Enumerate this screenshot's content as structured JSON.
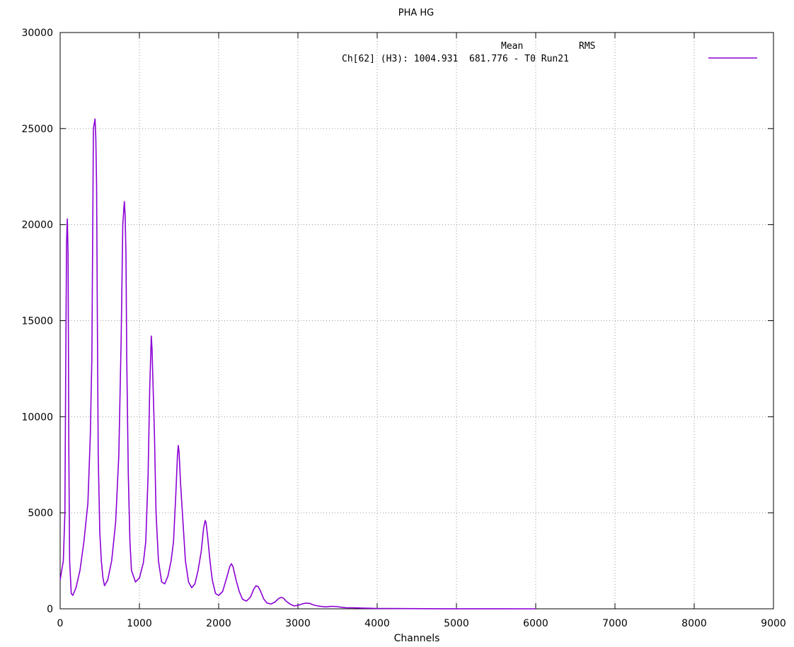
{
  "chart_data": {
    "type": "line",
    "title": "PHA HG",
    "xlabel": "Channels",
    "ylabel": "",
    "xlim": [
      0,
      9000
    ],
    "ylim": [
      0,
      30000
    ],
    "grid": true,
    "legend_placement": "top-right",
    "x_ticks": [
      "0",
      "1000",
      "2000",
      "3000",
      "4000",
      "5000",
      "6000",
      "7000",
      "8000",
      "9000"
    ],
    "y_ticks": [
      "0",
      "5000",
      "10000",
      "15000",
      "20000",
      "25000",
      "30000"
    ],
    "legend": {
      "header_mean": "Mean",
      "header_rms": "RMS",
      "entry": "Ch[62] (H3): 1004.931  681.776 - T0 Run21"
    },
    "series": [
      {
        "name": "Ch[62] (H3): 1004.931  681.776 - T0 Run21",
        "color": "#8b00d4",
        "x": [
          0,
          20,
          40,
          60,
          70,
          80,
          90,
          95,
          100,
          110,
          120,
          140,
          160,
          180,
          200,
          250,
          300,
          350,
          380,
          400,
          420,
          440,
          450,
          460,
          470,
          480,
          500,
          520,
          540,
          560,
          600,
          650,
          700,
          740,
          770,
          790,
          810,
          820,
          830,
          840,
          860,
          880,
          900,
          950,
          1000,
          1050,
          1080,
          1110,
          1130,
          1150,
          1160,
          1170,
          1190,
          1210,
          1240,
          1280,
          1320,
          1360,
          1400,
          1430,
          1460,
          1480,
          1490,
          1500,
          1520,
          1550,
          1580,
          1620,
          1660,
          1700,
          1740,
          1780,
          1810,
          1830,
          1840,
          1860,
          1890,
          1920,
          1960,
          2000,
          2050,
          2100,
          2140,
          2160,
          2180,
          2220,
          2260,
          2300,
          2350,
          2400,
          2440,
          2470,
          2500,
          2530,
          2570,
          2610,
          2660,
          2710,
          2760,
          2790,
          2820,
          2850,
          2900,
          2950,
          3000,
          3050,
          3100,
          3150,
          3200,
          3250,
          3300,
          3350,
          3400,
          3450,
          3500,
          3550,
          3600,
          3700,
          3800,
          3900,
          4000,
          4200,
          4400,
          4600,
          4800,
          5000,
          5500,
          6000
        ],
        "values": [
          1500,
          2000,
          2500,
          5000,
          12000,
          19000,
          20300,
          19500,
          18500,
          8000,
          2500,
          800,
          700,
          900,
          1100,
          2000,
          3500,
          5500,
          9000,
          13000,
          25000,
          25500,
          24500,
          22000,
          15000,
          8000,
          4000,
          2500,
          1600,
          1200,
          1500,
          2500,
          4500,
          8000,
          14000,
          20000,
          21200,
          20500,
          18500,
          13000,
          7000,
          3500,
          2000,
          1400,
          1600,
          2400,
          3500,
          7000,
          11500,
          14200,
          13500,
          12000,
          9000,
          5000,
          2500,
          1400,
          1300,
          1700,
          2500,
          3500,
          6000,
          8000,
          8500,
          8200,
          6500,
          4500,
          2500,
          1400,
          1100,
          1300,
          2000,
          3000,
          4200,
          4600,
          4500,
          3800,
          2500,
          1500,
          800,
          700,
          900,
          1600,
          2200,
          2350,
          2200,
          1500,
          900,
          500,
          400,
          600,
          1000,
          1200,
          1150,
          900,
          500,
          300,
          250,
          350,
          550,
          600,
          550,
          400,
          250,
          150,
          180,
          250,
          300,
          280,
          200,
          150,
          120,
          100,
          120,
          130,
          110,
          80,
          60,
          50,
          40,
          30,
          20,
          15,
          10,
          8,
          5,
          3,
          2,
          0
        ]
      }
    ]
  }
}
